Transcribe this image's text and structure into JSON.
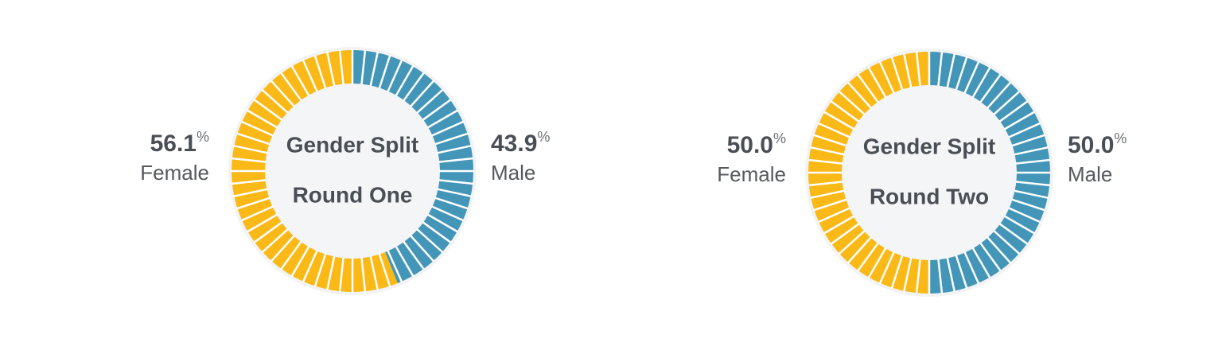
{
  "chart_data": [
    {
      "type": "donut",
      "title": "Gender Split",
      "subtitle": "Round One",
      "unit": "%",
      "categories": [
        "Female",
        "Male"
      ],
      "values": [
        56.1,
        43.9
      ],
      "colors": [
        "#fbb917",
        "#4396b8"
      ]
    },
    {
      "type": "donut",
      "title": "Gender Split",
      "subtitle": "Round Two",
      "unit": "%",
      "categories": [
        "Female",
        "Male"
      ],
      "values": [
        50,
        50
      ],
      "value_labels": [
        "50.0",
        "50.0"
      ],
      "colors": [
        "#fbb917",
        "#4396b8"
      ]
    }
  ]
}
